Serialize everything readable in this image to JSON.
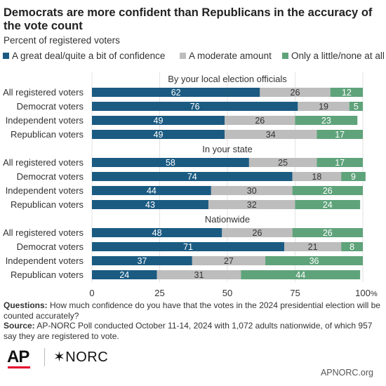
{
  "title": "Democrats are more confident than Republicans in the accuracy of the vote count",
  "subtitle": "Percent of registered voters",
  "legend": [
    {
      "label": "A great deal/quite a bit of confidence",
      "color": "#1b5b82"
    },
    {
      "label": "A moderate amount",
      "color": "#bdbdbd"
    },
    {
      "label": "Only a little/none at all",
      "color": "#5fa37b"
    }
  ],
  "notes": {
    "questions_label": "Questions:",
    "questions_text": " How much confidence do you have that the votes in the 2024 presidential election will be counted accurately?",
    "source_label": "Source:",
    "source_text": " AP-NORC Poll conducted October 11-14, 2024 with 1,072 adults nationwide, of which 957 say they are registered to vote."
  },
  "footer": {
    "ap_logo": "AP",
    "norc_logo": "✶NORC",
    "site": "APNORC.org"
  },
  "chart_data": {
    "type": "bar",
    "orientation": "horizontal",
    "stacked": true,
    "xlim": [
      0,
      100
    ],
    "ticks": [
      0,
      25,
      50,
      75,
      100
    ],
    "tick_labels": [
      "0",
      "25",
      "50",
      "75",
      "100"
    ],
    "tick_unit": "%",
    "series_colors": [
      "#1b5b82",
      "#bdbdbd",
      "#5fa37b"
    ],
    "series_label_colors": [
      "#ffffff",
      "#333333",
      "#ffffff"
    ],
    "groups": [
      {
        "title": "By your local election officials",
        "rows": [
          {
            "label": "All registered voters",
            "values": [
              62,
              26,
              12
            ]
          },
          {
            "label": "Democrat voters",
            "values": [
              76,
              19,
              5
            ]
          },
          {
            "label": "Independent voters",
            "values": [
              49,
              26,
              23
            ]
          },
          {
            "label": "Republican voters",
            "values": [
              49,
              34,
              17
            ]
          }
        ]
      },
      {
        "title": "In your state",
        "rows": [
          {
            "label": "All registered voters",
            "values": [
              58,
              25,
              17
            ]
          },
          {
            "label": "Democrat voters",
            "values": [
              74,
              18,
              9
            ]
          },
          {
            "label": "Independent voters",
            "values": [
              44,
              30,
              26
            ]
          },
          {
            "label": "Republican voters",
            "values": [
              43,
              32,
              24
            ]
          }
        ]
      },
      {
        "title": "Nationwide",
        "rows": [
          {
            "label": "All registered voters",
            "values": [
              48,
              26,
              26
            ]
          },
          {
            "label": "Democrat voters",
            "values": [
              71,
              21,
              8
            ]
          },
          {
            "label": "Independent voters",
            "values": [
              37,
              27,
              36
            ]
          },
          {
            "label": "Republican voters",
            "values": [
              24,
              31,
              44
            ]
          }
        ]
      }
    ]
  }
}
